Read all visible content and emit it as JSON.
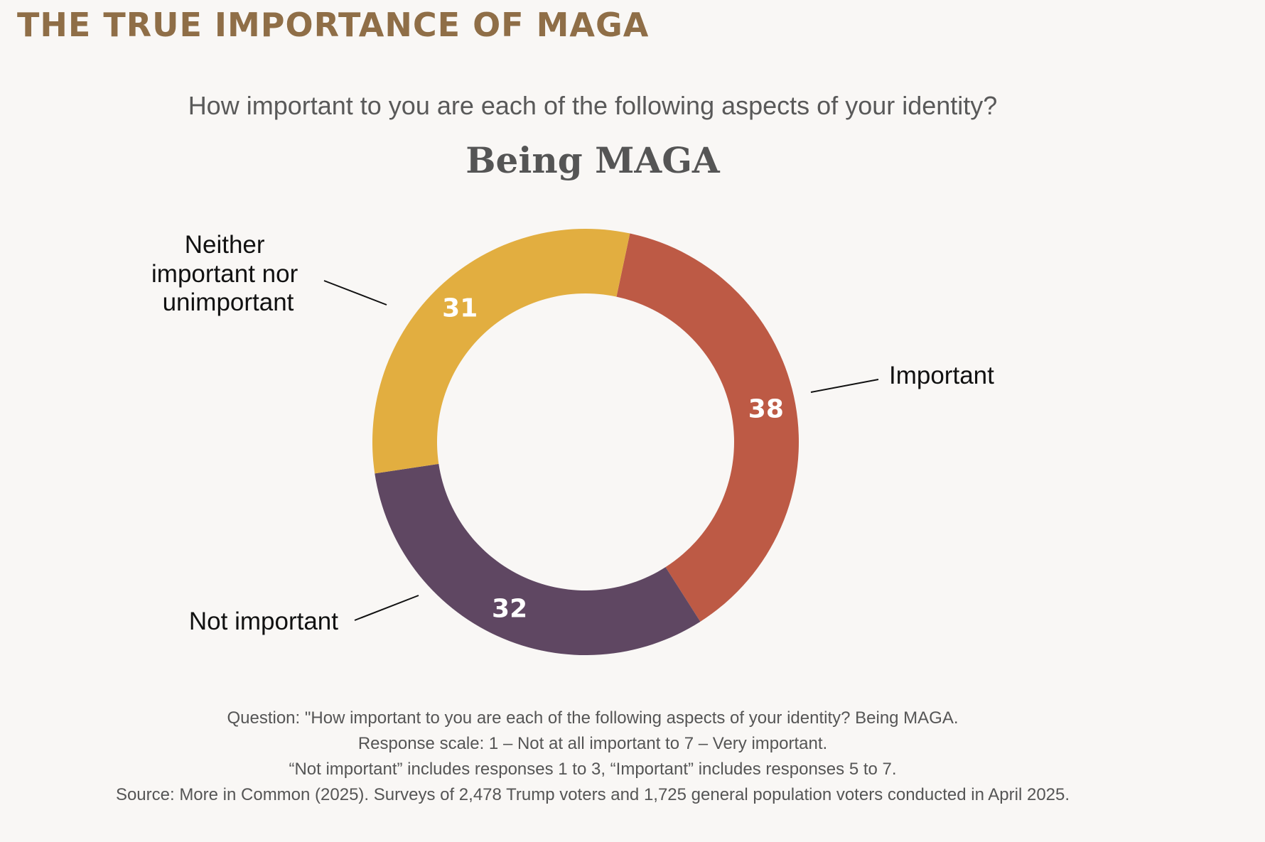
{
  "header": {
    "heading": "THE TRUE IMPORTANCE OF MAGA",
    "question": "How important to you are each of the following aspects of your identity?",
    "chart_title": "Being MAGA"
  },
  "chart_data": {
    "type": "pie",
    "donut": true,
    "title": "Being MAGA",
    "slices": [
      {
        "label": "Important",
        "value": 38,
        "color": "#bd5a45"
      },
      {
        "label": "Not important",
        "value": 32,
        "color": "#5f4762"
      },
      {
        "label": "Neither important nor unimportant",
        "value": 31,
        "color": "#e2ae40"
      }
    ]
  },
  "callouts": {
    "important": "Important",
    "not_important": "Not important",
    "neither_lines": [
      "Neither",
      "important nor",
      "unimportant"
    ]
  },
  "footnote": {
    "lines": [
      "Question: \"How important to you are each of the following aspects of your identity? Being MAGA.",
      "Response scale: 1 – Not at all important to 7 – Very important.",
      "“Not important” includes responses 1 to 3, “Important” includes responses 5 to 7.",
      "Source: More in Common (2025). Surveys of 2,478 Trump voters and 1,725 general population voters conducted in April 2025."
    ]
  },
  "colors": {
    "background": "#f9f7f5",
    "heading": "#8f6e47",
    "important": "#bd5a45",
    "not_important": "#5f4762",
    "neither": "#e2ae40"
  }
}
